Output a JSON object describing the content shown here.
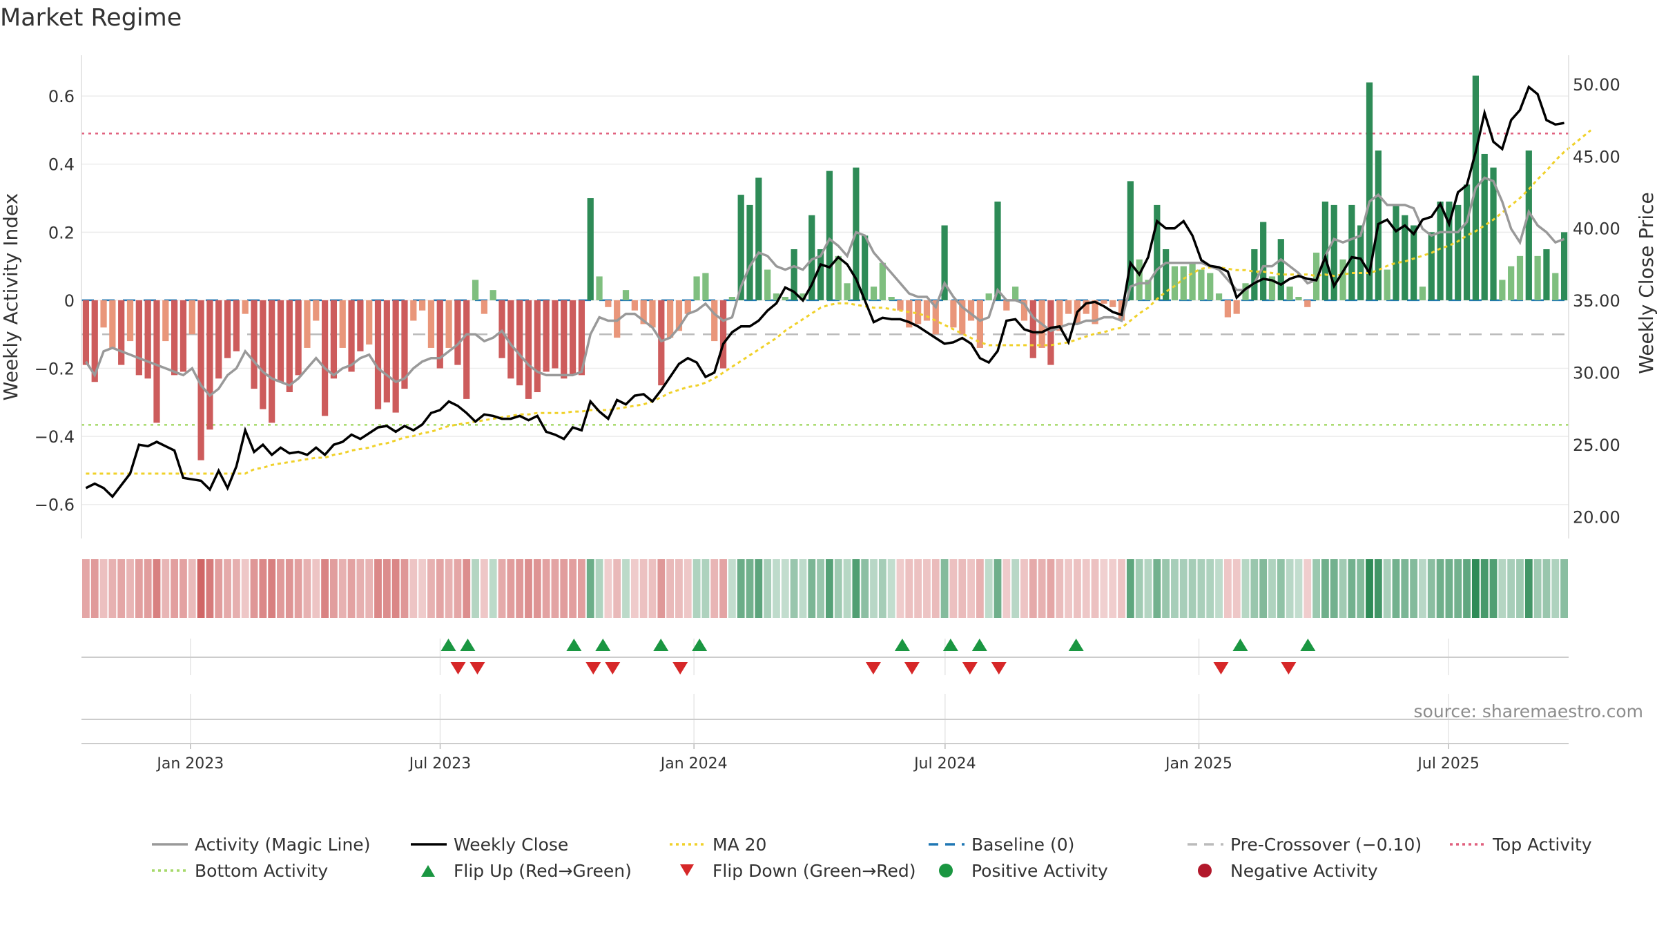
{
  "title": "Market Regime",
  "source": "source: sharemaestro.com",
  "colors": {
    "pos_dark": "#2e8b57",
    "pos_light": "#7fbf7f",
    "neg_dark": "#cd5c5c",
    "neg_light": "#e9967a",
    "magic": "#999999",
    "close": "#000000",
    "ma": "#f0d12a",
    "baseline": "#1f77b4",
    "precross": "#bbbbbb",
    "top": "#e0607e",
    "bottom": "#a6d96a",
    "flip_up": "#1a9641",
    "flip_down": "#d62728",
    "pos_marker": "#1a9641",
    "neg_marker": "#b2182b"
  },
  "chart_data": {
    "type": "bar",
    "title": "Market Regime",
    "x_range": [
      "2022-10-14",
      "2025-09-26"
    ],
    "x_ticks": [
      "Jan 2023",
      "Jul 2023",
      "Jan 2024",
      "Jul 2024",
      "Jan 2025",
      "Jul 2025"
    ],
    "ylabel_left": "Weekly Activity Index",
    "ylabel_right": "Weekly Close Price",
    "ylim_left": [
      -0.7,
      0.72
    ],
    "ylim_right": [
      18.5,
      52.0
    ],
    "y_ticks_left": [
      "0.6",
      "0.4",
      "0.2",
      "0",
      "−0.2",
      "−0.4",
      "−0.6"
    ],
    "y_ticks_right": [
      "50.00",
      "45.00",
      "40.00",
      "35.00",
      "30.00",
      "25.00",
      "20.00"
    ],
    "grid": true,
    "legend_position": "bottom",
    "reference_lines": {
      "baseline": 0,
      "pre_crossover": -0.1,
      "top_activity": 0.49,
      "bottom_activity": -0.366
    },
    "activity": [
      -0.19,
      -0.24,
      -0.08,
      -0.14,
      -0.19,
      -0.12,
      -0.22,
      -0.23,
      -0.36,
      -0.12,
      -0.22,
      -0.21,
      -0.1,
      -0.47,
      -0.38,
      -0.23,
      -0.17,
      -0.15,
      -0.04,
      -0.26,
      -0.32,
      -0.36,
      -0.24,
      -0.27,
      -0.22,
      -0.14,
      -0.06,
      -0.34,
      -0.23,
      -0.14,
      -0.21,
      -0.15,
      -0.13,
      -0.32,
      -0.3,
      -0.33,
      -0.26,
      -0.06,
      -0.03,
      -0.14,
      -0.2,
      -0.14,
      -0.19,
      -0.29,
      0.06,
      -0.04,
      0.03,
      -0.17,
      -0.23,
      -0.25,
      -0.29,
      -0.27,
      -0.21,
      -0.2,
      -0.23,
      -0.22,
      -0.22,
      0.3,
      0.07,
      -0.02,
      -0.11,
      0.03,
      -0.03,
      -0.07,
      -0.08,
      -0.25,
      -0.11,
      -0.09,
      -0.04,
      0.07,
      0.08,
      -0.12,
      -0.2,
      0.01,
      0.31,
      0.28,
      0.36,
      0.09,
      0.02,
      0.01,
      0.15,
      0.02,
      0.25,
      0.15,
      0.38,
      0.13,
      0.05,
      0.39,
      0.19,
      0.04,
      0.11,
      0.01,
      -0.03,
      -0.08,
      -0.07,
      -0.06,
      -0.1,
      0.22,
      -0.08,
      -0.1,
      -0.06,
      -0.14,
      0.02,
      0.29,
      -0.03,
      0.04,
      -0.06,
      -0.17,
      -0.14,
      -0.19,
      -0.09,
      -0.04,
      -0.07,
      -0.04,
      -0.07,
      -0.01,
      -0.02,
      -0.06,
      0.35,
      0.12,
      0.06,
      0.28,
      0.15,
      0.1,
      0.1,
      0.11,
      0.09,
      0.08,
      0.02,
      -0.05,
      -0.04,
      0.05,
      0.15,
      0.23,
      0.07,
      0.18,
      0.04,
      0.01,
      -0.02,
      0.14,
      0.29,
      0.28,
      0.12,
      0.28,
      0.22,
      0.64,
      0.44,
      0.09,
      0.28,
      0.25,
      0.22,
      0.04,
      0.2,
      0.29,
      0.29,
      0.28,
      0.34,
      0.66,
      0.43,
      0.39,
      0.06,
      0.1,
      0.13,
      0.44,
      0.13,
      0.15,
      0.08,
      0.2
    ],
    "magic_line": [
      -0.18,
      -0.22,
      -0.15,
      -0.14,
      -0.15,
      -0.16,
      -0.17,
      -0.18,
      -0.19,
      -0.2,
      -0.21,
      -0.22,
      -0.2,
      -0.25,
      -0.28,
      -0.26,
      -0.22,
      -0.2,
      -0.15,
      -0.18,
      -0.21,
      -0.23,
      -0.24,
      -0.25,
      -0.23,
      -0.2,
      -0.17,
      -0.2,
      -0.22,
      -0.2,
      -0.19,
      -0.17,
      -0.16,
      -0.2,
      -0.22,
      -0.24,
      -0.23,
      -0.2,
      -0.18,
      -0.17,
      -0.17,
      -0.15,
      -0.13,
      -0.1,
      -0.1,
      -0.12,
      -0.11,
      -0.09,
      -0.13,
      -0.16,
      -0.19,
      -0.21,
      -0.22,
      -0.22,
      -0.22,
      -0.22,
      -0.21,
      -0.1,
      -0.05,
      -0.06,
      -0.06,
      -0.04,
      -0.04,
      -0.06,
      -0.08,
      -0.12,
      -0.11,
      -0.08,
      -0.04,
      -0.03,
      -0.01,
      -0.04,
      -0.06,
      -0.05,
      0.04,
      0.1,
      0.14,
      0.13,
      0.1,
      0.09,
      0.1,
      0.09,
      0.12,
      0.13,
      0.18,
      0.16,
      0.13,
      0.2,
      0.19,
      0.14,
      0.11,
      0.08,
      0.05,
      0.02,
      0.01,
      0.01,
      -0.02,
      0.05,
      0.01,
      -0.02,
      -0.04,
      -0.06,
      -0.05,
      0.03,
      0.0,
      0.0,
      -0.01,
      -0.05,
      -0.07,
      -0.09,
      -0.08,
      -0.07,
      -0.07,
      -0.06,
      -0.06,
      -0.05,
      -0.05,
      -0.06,
      0.04,
      0.05,
      0.05,
      0.09,
      0.11,
      0.11,
      0.11,
      0.11,
      0.11,
      0.1,
      0.09,
      0.06,
      0.03,
      0.03,
      0.05,
      0.1,
      0.1,
      0.12,
      0.1,
      0.08,
      0.05,
      0.06,
      0.13,
      0.18,
      0.17,
      0.18,
      0.19,
      0.29,
      0.31,
      0.28,
      0.28,
      0.28,
      0.27,
      0.21,
      0.19,
      0.2,
      0.2,
      0.2,
      0.23,
      0.33,
      0.36,
      0.35,
      0.29,
      0.21,
      0.17,
      0.26,
      0.22,
      0.2,
      0.17,
      0.18
    ],
    "weekly_close": [
      22.0,
      22.3,
      22.0,
      21.4,
      22.2,
      23.0,
      25.0,
      24.9,
      25.2,
      24.9,
      24.6,
      22.7,
      22.6,
      22.5,
      21.9,
      23.2,
      22.0,
      23.5,
      26.0,
      24.5,
      25.0,
      24.3,
      24.8,
      24.4,
      24.5,
      24.3,
      24.8,
      24.3,
      25.0,
      25.2,
      25.7,
      25.4,
      25.8,
      26.2,
      26.3,
      25.9,
      26.3,
      26.0,
      26.4,
      27.2,
      27.4,
      28.0,
      27.7,
      27.2,
      26.6,
      27.1,
      27.0,
      26.8,
      26.8,
      27.0,
      26.7,
      27.0,
      25.9,
      25.7,
      25.4,
      26.2,
      26.0,
      28.0,
      27.3,
      26.8,
      28.1,
      27.8,
      28.4,
      28.5,
      28.0,
      28.8,
      29.7,
      30.6,
      31.0,
      30.7,
      29.7,
      30.0,
      32.0,
      32.8,
      33.2,
      33.2,
      33.6,
      34.3,
      34.8,
      35.9,
      35.6,
      35.0,
      36.1,
      37.5,
      37.3,
      38.0,
      37.5,
      36.5,
      35.0,
      33.5,
      33.8,
      33.7,
      33.7,
      33.5,
      33.2,
      32.8,
      32.4,
      32.0,
      32.1,
      32.4,
      32.0,
      31.0,
      30.7,
      31.5,
      33.6,
      33.7,
      33.0,
      32.8,
      32.8,
      33.1,
      33.2,
      32.1,
      34.2,
      34.8,
      34.9,
      34.6,
      34.2,
      34.0,
      37.6,
      36.8,
      38.0,
      40.5,
      40.0,
      40.0,
      40.5,
      39.5,
      37.8,
      37.4,
      37.3,
      37.0,
      35.2,
      35.8,
      36.2,
      36.5,
      36.4,
      36.1,
      36.5,
      36.7,
      36.5,
      36.4,
      38.0,
      36.0,
      37.0,
      38.0,
      37.9,
      36.9,
      40.3,
      40.6,
      39.8,
      40.2,
      39.6,
      40.6,
      40.8,
      41.7,
      40.3,
      42.5,
      43.0,
      45.3,
      48.0,
      46.0,
      45.5,
      47.5,
      48.2,
      49.8,
      49.3,
      47.5,
      47.2,
      47.3
    ],
    "ma20": [
      23.0,
      23.0,
      23.0,
      23.0,
      23.0,
      23.0,
      23.0,
      23.0,
      23.0,
      23.0,
      23.0,
      23.0,
      23.0,
      23.0,
      23.0,
      23.0,
      23.0,
      23.0,
      23.0,
      23.3,
      23.4,
      23.6,
      23.7,
      23.8,
      23.9,
      24.0,
      24.1,
      24.1,
      24.3,
      24.4,
      24.6,
      24.7,
      24.8,
      25.0,
      25.1,
      25.3,
      25.5,
      25.6,
      25.8,
      25.9,
      26.1,
      26.3,
      26.4,
      26.5,
      26.6,
      26.7,
      26.8,
      26.9,
      27.0,
      27.1,
      27.1,
      27.2,
      27.2,
      27.2,
      27.2,
      27.3,
      27.3,
      27.4,
      27.4,
      27.4,
      27.5,
      27.6,
      27.7,
      27.8,
      28.0,
      28.3,
      28.6,
      28.8,
      29.0,
      29.1,
      29.3,
      29.6,
      30.0,
      30.4,
      30.8,
      31.2,
      31.6,
      32.0,
      32.4,
      32.9,
      33.3,
      33.7,
      34.1,
      34.5,
      34.7,
      34.8,
      34.8,
      34.7,
      34.6,
      34.5,
      34.5,
      34.4,
      34.3,
      34.2,
      34.1,
      33.9,
      33.6,
      33.3,
      33.0,
      32.7,
      32.4,
      32.1,
      31.9,
      31.9,
      31.9,
      31.9,
      31.9,
      31.9,
      31.9,
      31.9,
      32.0,
      32.1,
      32.3,
      32.5,
      32.7,
      32.8,
      33.0,
      33.1,
      33.6,
      34.1,
      34.5,
      35.1,
      35.6,
      36.0,
      36.5,
      36.9,
      37.2,
      37.3,
      37.3,
      37.2,
      37.1,
      37.1,
      37.0,
      37.0,
      36.9,
      36.8,
      36.8,
      36.8,
      36.8,
      36.7,
      36.8,
      36.7,
      36.8,
      36.9,
      36.9,
      36.9,
      37.1,
      37.4,
      37.6,
      37.7,
      37.9,
      38.1,
      38.3,
      38.6,
      38.8,
      39.1,
      39.5,
      39.8,
      40.2,
      40.6,
      41.1,
      41.6,
      42.1,
      42.7,
      43.4,
      44.0,
      44.7,
      45.3,
      45.8,
      46.3,
      46.8
    ],
    "flip_up_x": [
      "2023-07-07",
      "2023-07-21",
      "2023-10-06",
      "2023-10-27",
      "2023-12-08",
      "2024-01-05",
      "2024-05-31",
      "2024-07-05",
      "2024-07-26",
      "2024-10-04",
      "2025-01-31",
      "2025-03-21"
    ],
    "flip_down_x": [
      "2023-07-14",
      "2023-07-28",
      "2023-10-20",
      "2023-11-03",
      "2023-12-22",
      "2024-05-10",
      "2024-06-07",
      "2024-07-19",
      "2024-08-09",
      "2025-01-17",
      "2025-03-07"
    ]
  },
  "legend": [
    {
      "label": "Activity (Magic Line)",
      "kind": "line-solid",
      "color": "#999999"
    },
    {
      "label": "Weekly Close",
      "kind": "line-solid",
      "color": "#000000"
    },
    {
      "label": "MA 20",
      "kind": "line-dotted",
      "color": "#f0d12a"
    },
    {
      "label": "Baseline (0)",
      "kind": "line-dashed",
      "color": "#1f77b4"
    },
    {
      "label": "Pre-Crossover (−0.10)",
      "kind": "line-dashed",
      "color": "#bbbbbb"
    },
    {
      "label": "Top Activity",
      "kind": "line-dotted",
      "color": "#e0607e"
    },
    {
      "label": "Bottom Activity",
      "kind": "line-dotted",
      "color": "#a6d96a"
    },
    {
      "label": "Flip Up (Red→Green)",
      "kind": "tri-up",
      "color": "#1a9641"
    },
    {
      "label": "Flip Down (Green→Red)",
      "kind": "tri-down",
      "color": "#d62728"
    },
    {
      "label": "Positive Activity",
      "kind": "dot",
      "color": "#1a9641"
    },
    {
      "label": "Negative Activity",
      "kind": "dot",
      "color": "#b2182b"
    }
  ]
}
